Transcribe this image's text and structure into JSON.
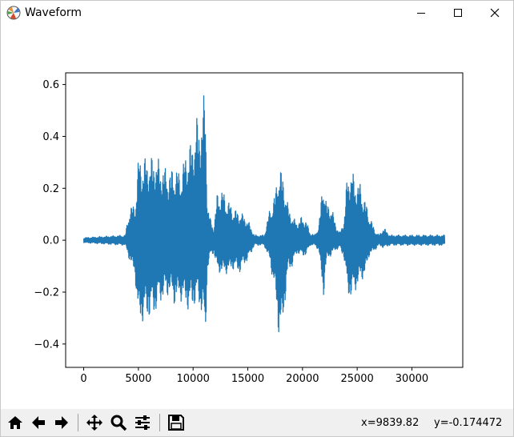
{
  "window": {
    "title": "Waveform"
  },
  "toolbar": {
    "buttons": [
      "home-icon",
      "back-arrow-icon",
      "forward-arrow-icon",
      "pan-icon",
      "zoom-icon",
      "configure-subplots-icon",
      "save-icon"
    ],
    "x_readout": "x=9839.82",
    "y_readout": "y=-0.174472"
  },
  "colors": {
    "line": "#1f77b4",
    "axes": "#000000",
    "background": "#ffffff"
  },
  "chart_data": {
    "type": "line",
    "title": "",
    "xlabel": "",
    "ylabel": "",
    "xlim": [
      -1650,
      34650
    ],
    "ylim": [
      -0.49,
      0.645
    ],
    "xticks": [
      0,
      5000,
      10000,
      15000,
      20000,
      25000,
      30000
    ],
    "xtick_labels": [
      "0",
      "5000",
      "10000",
      "15000",
      "20000",
      "25000",
      "30000"
    ],
    "yticks": [
      -0.4,
      -0.2,
      0.0,
      0.2,
      0.4,
      0.6
    ],
    "ytick_labels": [
      "−0.4",
      "−0.2",
      "0.0",
      "0.2",
      "0.4",
      "0.6"
    ],
    "grid": false,
    "series": [
      {
        "x": [
          0,
          3800,
          4200,
          4700,
          5000,
          5600,
          6100,
          6600,
          7000,
          7500,
          7900,
          8300,
          8700,
          9100,
          9500,
          9900,
          10300,
          10600,
          10900,
          11100,
          11300,
          11600,
          11900,
          12200,
          12600,
          13000,
          13400,
          13800,
          14200,
          14600,
          15100,
          15600,
          16000,
          16500,
          17000,
          17500,
          17800,
          18100,
          18400,
          18700,
          19100,
          19500,
          19900,
          20300,
          20700,
          21100,
          21500,
          21900,
          22200,
          22600,
          23000,
          23400,
          23800,
          24100,
          24500,
          24900,
          25300,
          25700,
          26100,
          26600,
          27000,
          27400,
          28000,
          29000,
          30000,
          31000,
          32000,
          33000
        ],
        "ymax": [
          0.01,
          0.02,
          0.13,
          0.14,
          0.32,
          0.32,
          0.32,
          0.33,
          0.3,
          0.28,
          0.27,
          0.29,
          0.27,
          0.3,
          0.37,
          0.38,
          0.48,
          0.46,
          0.53,
          0.6,
          0.15,
          0.08,
          0.05,
          0.18,
          0.2,
          0.17,
          0.14,
          0.12,
          0.11,
          0.1,
          0.07,
          0.02,
          0.02,
          0.02,
          0.12,
          0.18,
          0.29,
          0.27,
          0.21,
          0.13,
          0.09,
          0.07,
          0.09,
          0.08,
          0.03,
          0.02,
          0.06,
          0.25,
          0.14,
          0.14,
          0.07,
          0.03,
          0.08,
          0.26,
          0.27,
          0.23,
          0.22,
          0.16,
          0.1,
          0.04,
          0.02,
          0.05,
          0.02,
          0.02,
          0.02,
          0.02,
          0.02,
          0.02
        ],
        "ymin": [
          -0.01,
          -0.02,
          -0.08,
          -0.14,
          -0.33,
          -0.31,
          -0.3,
          -0.28,
          -0.24,
          -0.22,
          -0.21,
          -0.25,
          -0.23,
          -0.24,
          -0.27,
          -0.27,
          -0.24,
          -0.26,
          -0.3,
          -0.44,
          -0.12,
          -0.06,
          -0.05,
          -0.12,
          -0.13,
          -0.13,
          -0.12,
          -0.11,
          -0.13,
          -0.1,
          -0.07,
          -0.02,
          -0.02,
          -0.02,
          -0.08,
          -0.21,
          -0.36,
          -0.39,
          -0.24,
          -0.12,
          -0.1,
          -0.05,
          -0.06,
          -0.06,
          -0.02,
          -0.02,
          -0.04,
          -0.23,
          -0.08,
          -0.06,
          -0.04,
          -0.03,
          -0.07,
          -0.21,
          -0.23,
          -0.19,
          -0.16,
          -0.14,
          -0.06,
          -0.04,
          -0.02,
          -0.03,
          -0.02,
          -0.02,
          -0.02,
          -0.02,
          -0.02,
          -0.02
        ]
      }
    ]
  }
}
